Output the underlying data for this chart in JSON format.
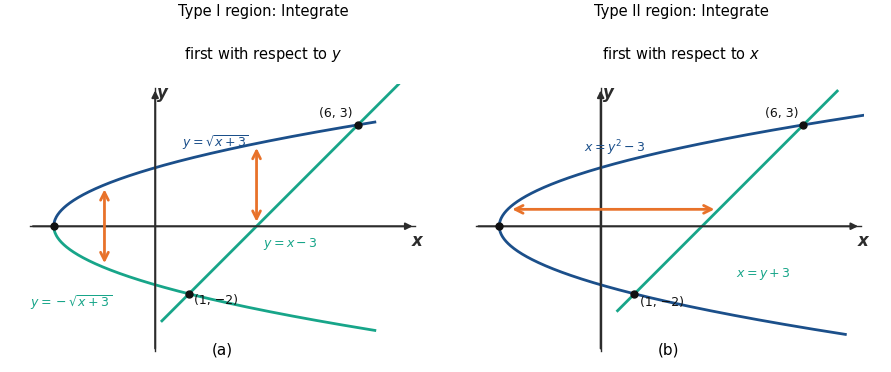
{
  "curve_color_upper": "#1B4F8A",
  "curve_color_lower": "#17A589",
  "arrow_color": "#E8722A",
  "axis_color": "#2c2c2c",
  "dot_color": "#111111",
  "text_color_upper": "#1B4F8A",
  "text_color_lower": "#17A589",
  "background": "#ffffff",
  "xlim": [
    -3.8,
    7.8
  ],
  "ylim": [
    -3.8,
    4.2
  ],
  "label_a": "(a)",
  "label_b": "(b)"
}
